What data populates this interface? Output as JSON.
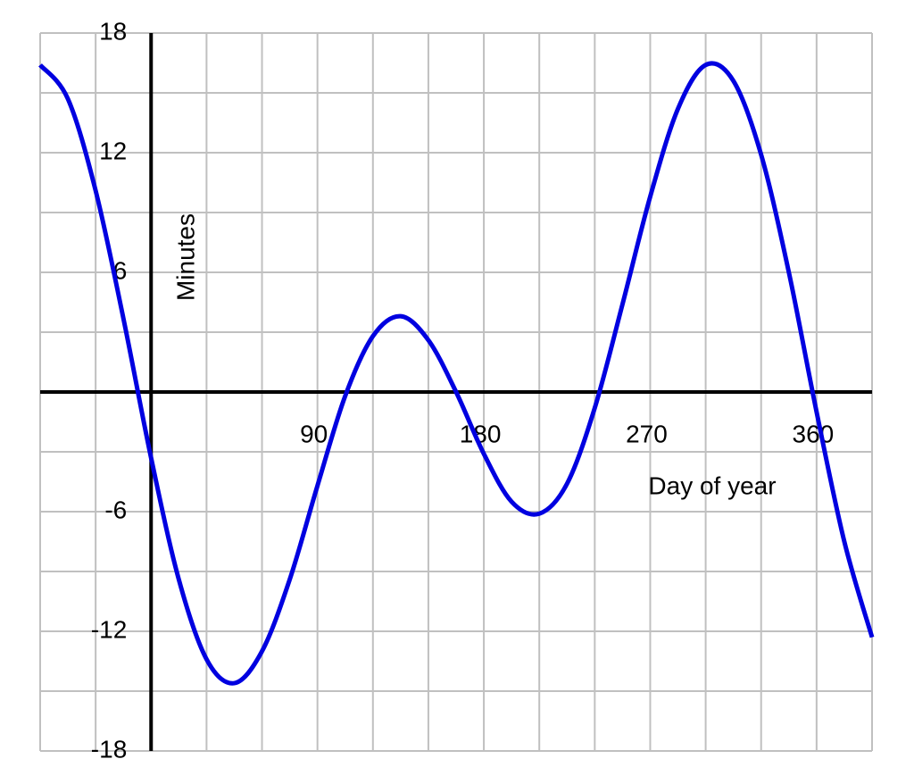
{
  "chart_data": {
    "type": "line",
    "x_label": "Day of year",
    "y_label": "Minutes",
    "xlim": [
      -60,
      390
    ],
    "ylim": [
      -18,
      18
    ],
    "xticks": [
      90,
      180,
      270,
      360
    ],
    "yticks": [
      -18,
      -12,
      -6,
      6,
      12,
      18
    ],
    "xgrid": [
      -60,
      -30,
      0,
      30,
      60,
      90,
      120,
      150,
      180,
      210,
      240,
      270,
      300,
      330,
      360,
      390
    ],
    "ygrid": [
      -18,
      -15,
      -12,
      -9,
      -6,
      -3,
      0,
      3,
      6,
      9,
      12,
      15,
      18
    ],
    "grid": true,
    "grid_color": "#c0c0c0",
    "axis_color": "#000000",
    "x": [
      -60,
      -45,
      -30,
      -15,
      0,
      15,
      30,
      45,
      60,
      75,
      90,
      105,
      120,
      135,
      150,
      165,
      180,
      195,
      210,
      225,
      240,
      255,
      270,
      285,
      300,
      315,
      330,
      345,
      360,
      375,
      390
    ],
    "series": [
      {
        "color": "#0000e0",
        "values": [
          16.4,
          14.7,
          10.1,
          3.7,
          -3.3,
          -9.4,
          -13.4,
          -14.6,
          -13.0,
          -9.4,
          -4.7,
          -0.2,
          2.8,
          3.8,
          2.6,
          0.0,
          -3.1,
          -5.5,
          -6.1,
          -4.6,
          -0.8,
          4.4,
          9.8,
          14.2,
          16.4,
          15.6,
          11.9,
          6.0,
          -1.0,
          -7.5,
          -12.3
        ]
      }
    ]
  }
}
